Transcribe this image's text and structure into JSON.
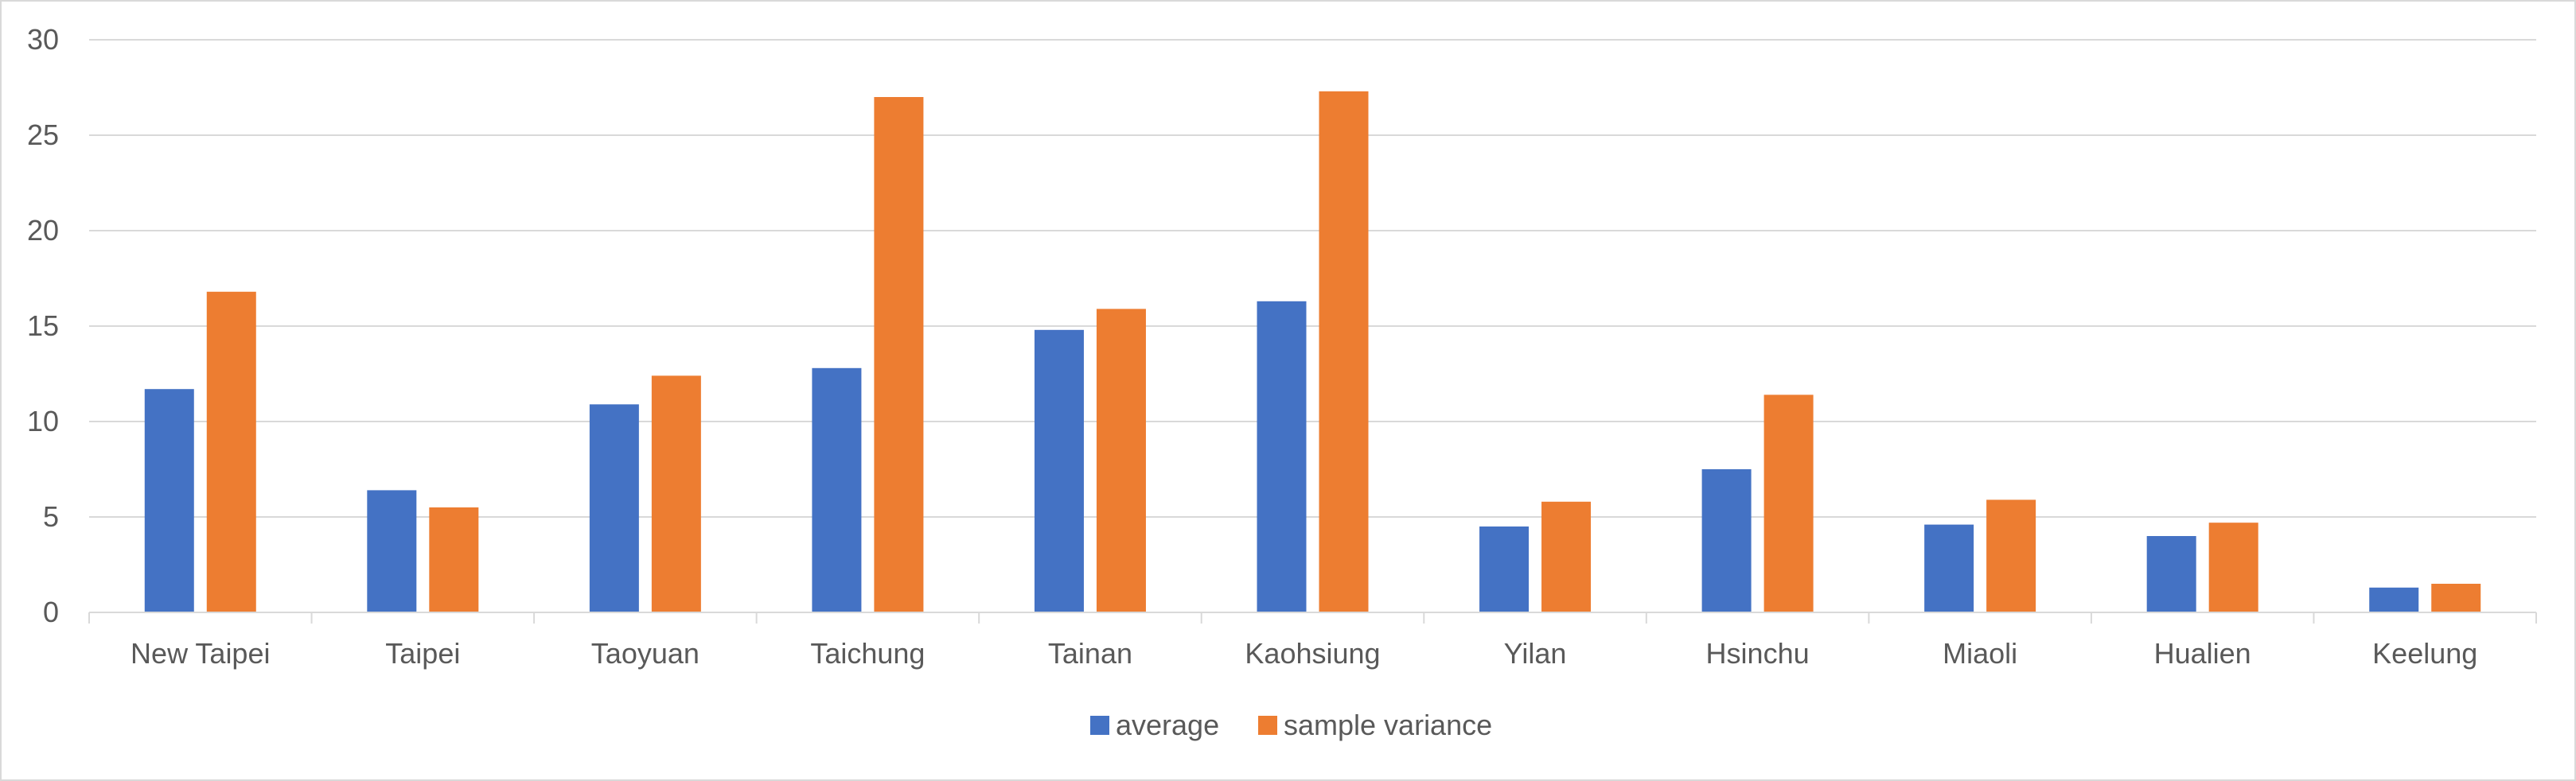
{
  "chart_data": {
    "type": "bar",
    "categories": [
      "New Taipei",
      "Taipei",
      "Taoyuan",
      "Taichung",
      "Tainan",
      "Kaohsiung",
      "Yilan",
      "Hsinchu",
      "Miaoli",
      "Hualien",
      "Keelung"
    ],
    "series": [
      {
        "name": "average",
        "color": "#4472c4",
        "values": [
          11.7,
          6.4,
          10.9,
          12.8,
          14.8,
          16.3,
          4.5,
          7.5,
          4.6,
          4.0,
          1.3
        ]
      },
      {
        "name": "sample variance",
        "color": "#ed7d31",
        "values": [
          16.8,
          5.5,
          12.4,
          27.0,
          15.9,
          27.3,
          5.8,
          11.4,
          5.9,
          4.7,
          1.5
        ]
      }
    ],
    "title": "",
    "xlabel": "",
    "ylabel": "",
    "ylim": [
      0,
      30
    ],
    "yticks": [
      "0",
      "5",
      "10",
      "15",
      "20",
      "25",
      "30"
    ],
    "grid": true,
    "legend_position": "bottom-center"
  }
}
